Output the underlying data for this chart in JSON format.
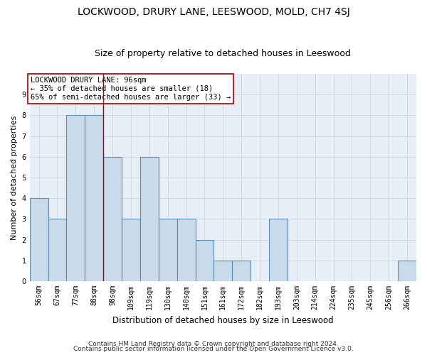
{
  "title": "LOCKWOOD, DRURY LANE, LEESWOOD, MOLD, CH7 4SJ",
  "subtitle": "Size of property relative to detached houses in Leeswood",
  "xlabel": "Distribution of detached houses by size in Leeswood",
  "ylabel": "Number of detached properties",
  "footer1": "Contains HM Land Registry data © Crown copyright and database right 2024.",
  "footer2": "Contains public sector information licensed under the Open Government Licence v3.0.",
  "annotation_line1": "LOCKWOOD DRURY LANE: 96sqm",
  "annotation_line2": "← 35% of detached houses are smaller (18)",
  "annotation_line3": "65% of semi-detached houses are larger (33) →",
  "categories": [
    "56sqm",
    "67sqm",
    "77sqm",
    "88sqm",
    "98sqm",
    "109sqm",
    "119sqm",
    "130sqm",
    "140sqm",
    "151sqm",
    "161sqm",
    "172sqm",
    "182sqm",
    "193sqm",
    "203sqm",
    "214sqm",
    "224sqm",
    "235sqm",
    "245sqm",
    "256sqm",
    "266sqm"
  ],
  "values": [
    4,
    3,
    8,
    8,
    6,
    3,
    6,
    3,
    3,
    2,
    1,
    1,
    0,
    3,
    0,
    0,
    0,
    0,
    0,
    0,
    1
  ],
  "bar_color": "#c9daea",
  "bar_edge_color": "#5b8db8",
  "bar_linewidth": 0.8,
  "red_line_x": 3.5,
  "ylim": [
    0,
    10
  ],
  "yticks": [
    0,
    1,
    2,
    3,
    4,
    5,
    6,
    7,
    8,
    9
  ],
  "grid_color": "#c8d4e0",
  "bg_color": "#e8eef5",
  "annotation_box_color": "#ffffff",
  "annotation_box_edge": "#aa0000",
  "red_line_color": "#aa0000",
  "title_fontsize": 10,
  "subtitle_fontsize": 9,
  "xlabel_fontsize": 8.5,
  "ylabel_fontsize": 8,
  "tick_fontsize": 7,
  "annotation_fontsize": 7.5,
  "footer_fontsize": 6.5
}
